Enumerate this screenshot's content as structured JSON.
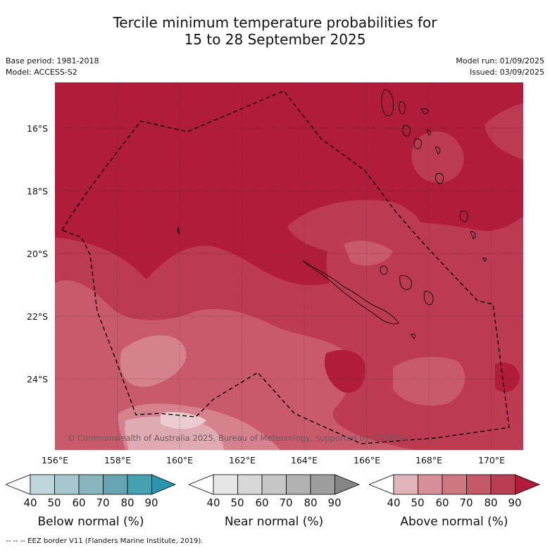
{
  "title": {
    "line1": "Tercile minimum temperature probabilities for",
    "line2": "15 to 28 September 2025"
  },
  "meta": {
    "base_period": "Base period: 1981-2018",
    "model": "Model: ACCESS-S2",
    "model_run": "Model run: 01/09/2025",
    "issued": "Issued: 03/09/2025"
  },
  "map": {
    "lat_ticks": [
      "16°S",
      "18°S",
      "20°S",
      "22°S",
      "24°S"
    ],
    "lon_ticks": [
      "156°E",
      "158°E",
      "160°E",
      "162°E",
      "164°E",
      "166°E",
      "168°E",
      "170°E"
    ],
    "lat_values": [
      -16,
      -18,
      -20,
      -22,
      -24
    ],
    "lon_values": [
      156,
      158,
      160,
      162,
      164,
      166,
      168,
      170
    ],
    "copyright": "© Commonwealth of Australia 2025, Bureau of Meteorology, supported by COSPPac",
    "colors": {
      "above_90": "#b01c3a",
      "above_80": "#bc3a52",
      "above_70": "#c95a6c",
      "above_60": "#d6828e",
      "above_50": "#e0aab2",
      "above_40": "#ecccd0"
    }
  },
  "colorbars": [
    {
      "title": "Below normal (%)",
      "ticks": [
        "40",
        "50",
        "60",
        "70",
        "80",
        "90"
      ],
      "colors": [
        "#ffffff",
        "#bfd6dc",
        "#a6c7cd",
        "#88b5be",
        "#67a4b1",
        "#45a0b0",
        "#2a96ae"
      ]
    },
    {
      "title": "Near normal (%)",
      "ticks": [
        "40",
        "50",
        "60",
        "70",
        "80",
        "90"
      ],
      "colors": [
        "#ffffff",
        "#e6e6e6",
        "#d7d7d7",
        "#c6c6c6",
        "#b2b2b2",
        "#9e9e9e",
        "#858585"
      ]
    },
    {
      "title": "Above normal (%)",
      "ticks": [
        "40",
        "50",
        "60",
        "70",
        "80",
        "90"
      ],
      "colors": [
        "#ffffff",
        "#e0b4ba",
        "#d6909a",
        "#cd7880",
        "#c45a68",
        "#b83e52",
        "#b01c3a"
      ]
    }
  ],
  "footnote": "--  --  -- EEZ border V11 (Flanders Marine Institute, 2019)."
}
